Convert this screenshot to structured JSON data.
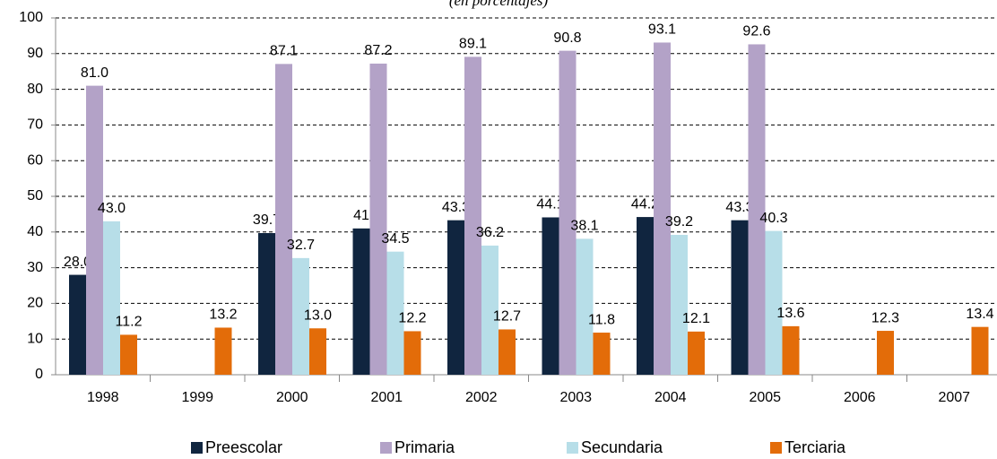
{
  "chart_data": {
    "type": "bar",
    "subtitle": "(en porcentajes)",
    "categories": [
      "1998",
      "1999",
      "2000",
      "2001",
      "2002",
      "2003",
      "2004",
      "2005",
      "2006",
      "2007"
    ],
    "series": [
      {
        "name": "Preescolar",
        "color": "#10253f",
        "values": [
          28.0,
          null,
          39.7,
          41,
          43.3,
          44.1,
          44.2,
          43.3,
          null,
          null
        ],
        "value_labels": [
          "28.0",
          null,
          "39.7",
          "41",
          "43.3",
          "44.1",
          "44.2",
          "43.3",
          null,
          null
        ]
      },
      {
        "name": "Primaria",
        "color": "#b3a2c7",
        "values": [
          81.0,
          null,
          87.1,
          87.2,
          89.1,
          90.8,
          93.1,
          92.6,
          null,
          null
        ],
        "value_labels": [
          "81.0",
          null,
          "87.1",
          "87.2",
          "89.1",
          "90.8",
          "93.1",
          "92.6",
          null,
          null
        ]
      },
      {
        "name": "Secundaria",
        "color": "#b7dee8",
        "values": [
          43.0,
          null,
          32.7,
          34.5,
          36.2,
          38.1,
          39.2,
          40.3,
          null,
          null
        ],
        "value_labels": [
          "43.0",
          null,
          "32.7",
          "34.5",
          "36.2",
          "38.1",
          "39.2",
          "40.3",
          null,
          null
        ]
      },
      {
        "name": "Terciaria",
        "color": "#e36c09",
        "values": [
          11.2,
          13.2,
          13.0,
          12.2,
          12.7,
          11.8,
          12.1,
          13.6,
          12.3,
          13.4
        ],
        "value_labels": [
          "11.2",
          "13.2",
          "13.0",
          "12.2",
          "12.7",
          "11.8",
          "12.1",
          "13.6",
          "12.3",
          "13.4"
        ]
      }
    ],
    "ylim": [
      0,
      100
    ],
    "yticks": [
      0,
      10,
      20,
      30,
      40,
      50,
      60,
      70,
      80,
      90,
      100
    ],
    "grid": true,
    "legend": "bottom"
  }
}
